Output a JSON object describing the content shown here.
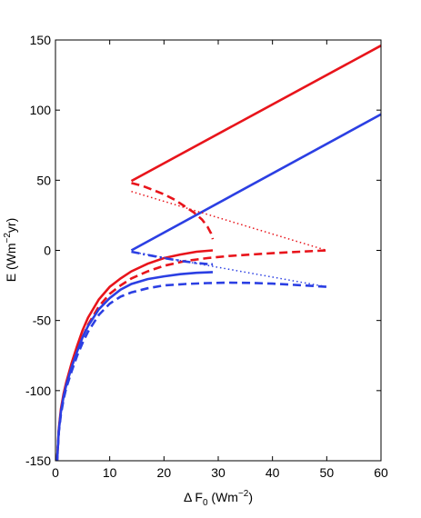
{
  "chart_data": {
    "type": "line",
    "title": "",
    "xlabel": {
      "base": "Δ F",
      "sub": "0",
      "unit_open": " (Wm",
      "unit_sup": "−2",
      "unit_close": ")"
    },
    "ylabel": {
      "base": "E (Wm",
      "sup": "−2",
      "tail": "yr)"
    },
    "xlim": [
      0,
      60
    ],
    "ylim": [
      -150,
      150
    ],
    "xticks": [
      0,
      10,
      20,
      30,
      40,
      50,
      60
    ],
    "yticks": [
      -150,
      -100,
      -50,
      0,
      50,
      100,
      150
    ],
    "grid": false,
    "colors": {
      "red": "#e8141b",
      "blue": "#2b3fe3"
    },
    "series": [
      {
        "color": "red",
        "style": "solid",
        "x": [
          0.3,
          0.6,
          1,
          1.5,
          2,
          3,
          4,
          5,
          6,
          8,
          10,
          12,
          14,
          17,
          20,
          23,
          26,
          29
        ],
        "y": [
          -150,
          -128,
          -113,
          -102,
          -94,
          -80,
          -68,
          -57,
          -48,
          -35,
          -26,
          -20,
          -15,
          -9.5,
          -5.5,
          -3,
          -1,
          0
        ]
      },
      {
        "color": "red",
        "style": "dashed",
        "x": [
          0.3,
          0.6,
          1,
          1.5,
          2,
          3,
          4,
          5,
          6,
          8,
          10,
          12,
          14,
          17,
          20,
          24,
          28,
          32,
          36,
          40,
          45,
          50
        ],
        "y": [
          -150,
          -129,
          -115,
          -104,
          -96,
          -83,
          -72,
          -62,
          -53,
          -40,
          -31,
          -25,
          -20,
          -15,
          -11,
          -7.5,
          -5.5,
          -4,
          -3,
          -2,
          -1,
          0
        ]
      },
      {
        "color": "blue",
        "style": "solid",
        "x": [
          0.3,
          0.6,
          1,
          1.5,
          2,
          3,
          4,
          5,
          6,
          8,
          10,
          12,
          14,
          17,
          20,
          23,
          26,
          29
        ],
        "y": [
          -150,
          -129,
          -115,
          -104,
          -96,
          -83,
          -72,
          -62,
          -54,
          -42,
          -34,
          -28,
          -24,
          -20.5,
          -18.5,
          -17,
          -16,
          -15.5
        ]
      },
      {
        "color": "blue",
        "style": "dashed",
        "x": [
          0.3,
          0.6,
          1,
          1.5,
          2,
          3,
          4,
          5,
          6,
          8,
          10,
          12,
          14,
          17,
          20,
          24,
          28,
          32,
          36,
          40,
          45,
          50
        ],
        "y": [
          -150,
          -130,
          -117,
          -106,
          -98,
          -86,
          -75,
          -66,
          -58,
          -46,
          -38,
          -33,
          -30,
          -27,
          -25,
          -24,
          -23.3,
          -23,
          -23.2,
          -23.7,
          -24.8,
          -26
        ]
      },
      {
        "color": "red",
        "style": "solid",
        "x": [
          14,
          60
        ],
        "y": [
          49.5,
          146
        ]
      },
      {
        "color": "blue",
        "style": "solid",
        "x": [
          14,
          60
        ],
        "y": [
          0,
          97
        ]
      },
      {
        "color": "red",
        "style": "dashed",
        "x": [
          14,
          16,
          18,
          20,
          22,
          24,
          25.5,
          27,
          28,
          28.7,
          29
        ],
        "y": [
          48,
          46,
          43,
          40,
          36,
          31,
          27,
          22,
          17,
          12,
          8
        ]
      },
      {
        "color": "red",
        "style": "dotted",
        "x": [
          14,
          50
        ],
        "y": [
          42,
          0
        ]
      },
      {
        "color": "blue",
        "style": "dotted",
        "x": [
          14,
          50
        ],
        "y": [
          -1,
          -26
        ]
      },
      {
        "color": "blue",
        "style": "dashdot",
        "x": [
          14,
          16,
          18,
          20,
          22,
          24,
          26,
          28,
          29
        ],
        "y": [
          -1,
          -2.5,
          -4,
          -5.5,
          -6.8,
          -8,
          -9,
          -9.8,
          -10
        ]
      }
    ]
  }
}
